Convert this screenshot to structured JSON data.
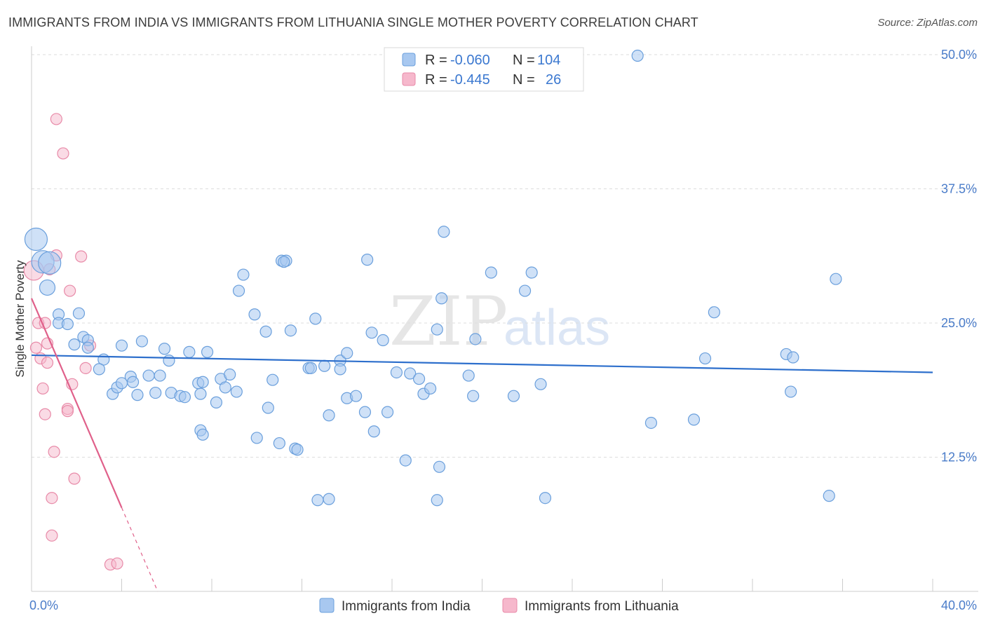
{
  "title": "IMMIGRANTS FROM INDIA VS IMMIGRANTS FROM LITHUANIA SINGLE MOTHER POVERTY CORRELATION CHART",
  "source": "Source: ZipAtlas.com",
  "watermark": {
    "zip": "ZIP",
    "atlas": "atlas"
  },
  "colors": {
    "india": "#a8c8f0",
    "india_stroke": "#6a9fdc",
    "india_line": "#2d6fcc",
    "lithuania": "#f6b8cc",
    "lithuania_stroke": "#e88aa8",
    "lithuania_line": "#e0608a",
    "tick": "#4a7cc9"
  },
  "legend": [
    {
      "r_label": "R =",
      "r_value": "-0.060",
      "n_label": "N =",
      "n_value": "104"
    },
    {
      "r_label": "R =",
      "r_value": "-0.445",
      "n_label": "N =",
      "n_value": "26"
    }
  ],
  "chart_data": {
    "type": "scatter",
    "xlabel": "",
    "ylabel": "Single Mother Poverty",
    "xlim": [
      0,
      40
    ],
    "ylim": [
      0,
      50
    ],
    "x_tick_labels": [
      "0.0%",
      "40.0%"
    ],
    "y_ticks": [
      12.5,
      25.0,
      37.5,
      50.0
    ],
    "y_tick_labels": [
      "12.5%",
      "25.0%",
      "37.5%",
      "50.0%"
    ],
    "series": [
      {
        "name": "Immigrants from India",
        "trend": {
          "x": [
            0,
            40
          ],
          "y": [
            22.0,
            20.4
          ]
        },
        "points": [
          [
            0.2,
            32.8
          ],
          [
            0.5,
            30.7
          ],
          [
            0.8,
            30.6
          ],
          [
            0.7,
            28.3
          ],
          [
            1.2,
            25.8
          ],
          [
            1.2,
            25.0
          ],
          [
            1.6,
            24.9
          ],
          [
            2.1,
            25.9
          ],
          [
            2.3,
            23.7
          ],
          [
            2.5,
            23.4
          ],
          [
            1.9,
            23.0
          ],
          [
            2.5,
            22.7
          ],
          [
            3.2,
            21.6
          ],
          [
            3.0,
            20.7
          ],
          [
            3.6,
            18.4
          ],
          [
            3.8,
            19.0
          ],
          [
            4.0,
            19.4
          ],
          [
            4.4,
            20.0
          ],
          [
            4.5,
            19.5
          ],
          [
            4.7,
            18.3
          ],
          [
            4.0,
            22.9
          ],
          [
            4.9,
            23.3
          ],
          [
            5.2,
            20.1
          ],
          [
            5.5,
            18.5
          ],
          [
            5.7,
            20.1
          ],
          [
            5.9,
            22.6
          ],
          [
            6.1,
            21.5
          ],
          [
            6.2,
            18.5
          ],
          [
            6.6,
            18.2
          ],
          [
            6.8,
            18.1
          ],
          [
            7.0,
            22.3
          ],
          [
            7.5,
            18.4
          ],
          [
            7.4,
            19.4
          ],
          [
            7.6,
            19.5
          ],
          [
            7.8,
            22.3
          ],
          [
            7.5,
            15.0
          ],
          [
            7.6,
            14.6
          ],
          [
            8.2,
            17.6
          ],
          [
            8.4,
            19.8
          ],
          [
            8.6,
            19.0
          ],
          [
            8.8,
            20.2
          ],
          [
            9.1,
            18.6
          ],
          [
            9.2,
            28.0
          ],
          [
            9.4,
            29.5
          ],
          [
            9.9,
            25.8
          ],
          [
            10.0,
            14.3
          ],
          [
            10.4,
            24.2
          ],
          [
            10.5,
            17.1
          ],
          [
            10.7,
            19.7
          ],
          [
            11.0,
            13.8
          ],
          [
            11.1,
            30.8
          ],
          [
            11.3,
            30.8
          ],
          [
            11.5,
            24.3
          ],
          [
            11.7,
            13.3
          ],
          [
            11.8,
            13.2
          ],
          [
            12.3,
            20.8
          ],
          [
            12.4,
            20.8
          ],
          [
            12.6,
            25.4
          ],
          [
            12.7,
            8.5
          ],
          [
            13.0,
            21.0
          ],
          [
            13.2,
            8.6
          ],
          [
            13.2,
            16.4
          ],
          [
            13.7,
            21.5
          ],
          [
            13.7,
            20.7
          ],
          [
            14.0,
            18.0
          ],
          [
            14.0,
            22.2
          ],
          [
            14.4,
            18.2
          ],
          [
            14.8,
            16.7
          ],
          [
            14.9,
            30.9
          ],
          [
            15.1,
            24.1
          ],
          [
            15.2,
            14.9
          ],
          [
            15.6,
            23.4
          ],
          [
            15.8,
            16.7
          ],
          [
            16.2,
            20.4
          ],
          [
            16.6,
            12.2
          ],
          [
            16.8,
            20.3
          ],
          [
            17.2,
            19.8
          ],
          [
            17.4,
            18.4
          ],
          [
            17.7,
            18.9
          ],
          [
            18.0,
            24.4
          ],
          [
            18.2,
            27.3
          ],
          [
            18.3,
            33.5
          ],
          [
            18.0,
            8.5
          ],
          [
            18.1,
            11.6
          ],
          [
            19.4,
            20.1
          ],
          [
            19.6,
            18.2
          ],
          [
            19.7,
            23.5
          ],
          [
            20.4,
            29.7
          ],
          [
            21.4,
            18.2
          ],
          [
            21.9,
            28.0
          ],
          [
            22.2,
            29.7
          ],
          [
            22.6,
            19.3
          ],
          [
            22.8,
            8.7
          ],
          [
            26.9,
            49.9
          ],
          [
            27.5,
            15.7
          ],
          [
            29.4,
            16.0
          ],
          [
            29.9,
            21.7
          ],
          [
            30.3,
            26.0
          ],
          [
            33.5,
            22.1
          ],
          [
            33.8,
            21.8
          ],
          [
            33.7,
            18.6
          ],
          [
            35.4,
            8.9
          ],
          [
            35.7,
            29.1
          ],
          [
            11.2,
            30.7
          ]
        ]
      },
      {
        "name": "Immigrants from Lithuania",
        "trend": {
          "x": [
            0,
            4.0
          ],
          "y": [
            27.3,
            7.8
          ]
        },
        "trend_dashed": {
          "x": [
            4.0,
            5.6
          ],
          "y": [
            7.8,
            0
          ]
        },
        "points": [
          [
            0.1,
            29.9
          ],
          [
            0.2,
            22.7
          ],
          [
            0.3,
            25.0
          ],
          [
            0.4,
            21.7
          ],
          [
            0.5,
            18.9
          ],
          [
            0.6,
            16.5
          ],
          [
            0.7,
            23.1
          ],
          [
            0.7,
            21.3
          ],
          [
            0.6,
            25.0
          ],
          [
            0.8,
            30.0
          ],
          [
            0.9,
            8.7
          ],
          [
            0.9,
            5.2
          ],
          [
            1.0,
            13.0
          ],
          [
            1.1,
            31.3
          ],
          [
            1.1,
            44.0
          ],
          [
            1.4,
            40.8
          ],
          [
            1.6,
            17.0
          ],
          [
            1.6,
            16.8
          ],
          [
            1.7,
            28.0
          ],
          [
            1.8,
            19.3
          ],
          [
            1.9,
            10.5
          ],
          [
            2.2,
            31.2
          ],
          [
            2.4,
            20.8
          ],
          [
            2.6,
            22.9
          ],
          [
            3.5,
            2.5
          ],
          [
            3.8,
            2.6
          ]
        ]
      }
    ]
  },
  "bottom_legend": [
    "Immigrants from India",
    "Immigrants from Lithuania"
  ]
}
